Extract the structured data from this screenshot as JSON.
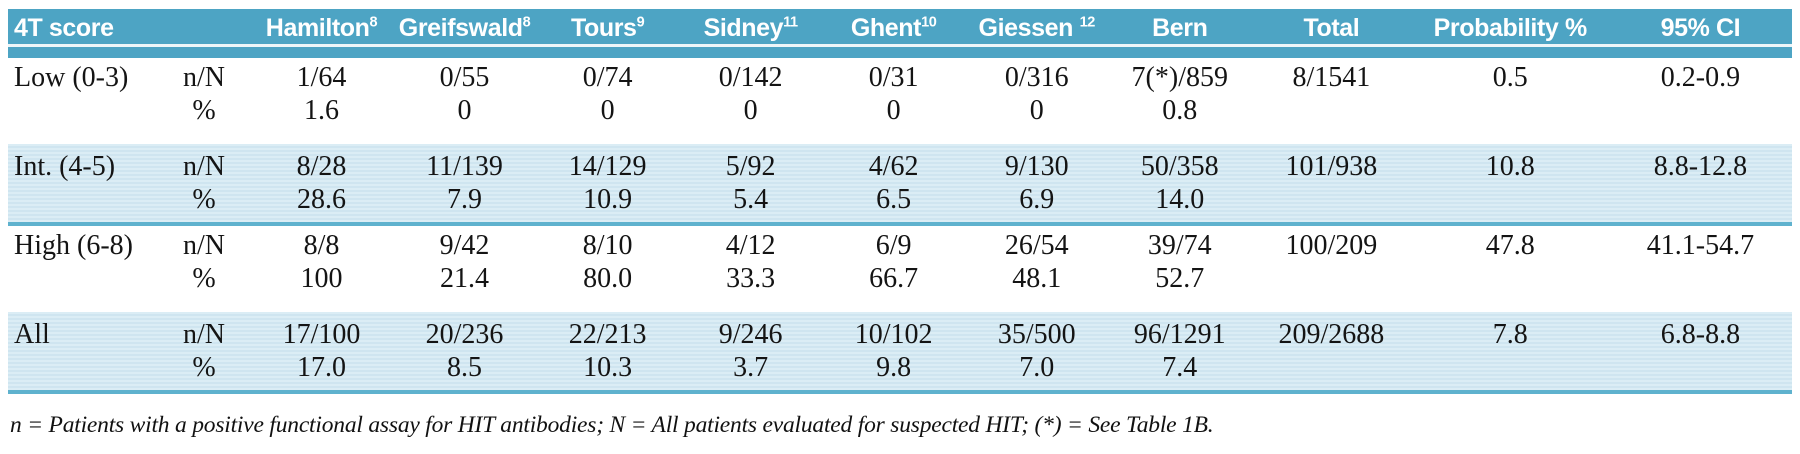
{
  "style": {
    "header_bg": "#4DA4C4",
    "band_bg": "#D6E9F2",
    "rule_color": "#5FB2CE",
    "header_text": "#FFFFFF",
    "body_text": "#141414"
  },
  "header": {
    "score_col": "4T score",
    "columns": [
      {
        "label": "Hamilton",
        "sup": "8"
      },
      {
        "label": "Greifswald",
        "sup": "8"
      },
      {
        "label": "Tours",
        "sup": "9"
      },
      {
        "label": "Sidney",
        "sup": "11"
      },
      {
        "label": "Ghent",
        "sup": "10"
      },
      {
        "label": "Giessen ",
        "sup": "12"
      },
      {
        "label": "Bern",
        "sup": ""
      },
      {
        "label": "Total",
        "sup": ""
      },
      {
        "label": "Probability %",
        "sup": ""
      },
      {
        "label": "95% CI",
        "sup": ""
      }
    ]
  },
  "rows": [
    {
      "score": "Low (0-3)",
      "sub_labels": [
        "n/N",
        "%"
      ],
      "n_N": [
        "1/64",
        "0/55",
        "0/74",
        "0/142",
        "0/31",
        "0/316",
        "7(*)/859",
        "8/1541"
      ],
      "pct": [
        "1.6",
        "0",
        "0",
        "0",
        "0",
        "0",
        "0.8"
      ],
      "probability": "0.5",
      "ci": "0.2-0.9",
      "shaded": false
    },
    {
      "score": "Int. (4-5)",
      "sub_labels": [
        "n/N",
        "%"
      ],
      "n_N": [
        "8/28",
        "11/139",
        "14/129",
        "5/92",
        "4/62",
        "9/130",
        "50/358",
        "101/938"
      ],
      "pct": [
        "28.6",
        "7.9",
        "10.9",
        "5.4",
        "6.5",
        "6.9",
        "14.0"
      ],
      "probability": "10.8",
      "ci": "8.8-12.8",
      "shaded": true
    },
    {
      "score": "High (6-8)",
      "sub_labels": [
        "n/N",
        "%"
      ],
      "n_N": [
        "8/8",
        "9/42",
        "8/10",
        "4/12",
        "6/9",
        "26/54",
        "39/74",
        "100/209"
      ],
      "pct": [
        "100",
        "21.4",
        "80.0",
        "33.3",
        "66.7",
        "48.1",
        "52.7"
      ],
      "probability": "47.8",
      "ci": "41.1-54.7",
      "shaded": false
    },
    {
      "score": "All",
      "sub_labels": [
        "n/N",
        "%"
      ],
      "n_N": [
        "17/100",
        "20/236",
        "22/213",
        "9/246",
        "10/102",
        "35/500",
        "96/1291",
        "209/2688"
      ],
      "pct": [
        "17.0",
        "8.5",
        "10.3",
        "3.7",
        "9.8",
        "7.0",
        "7.4"
      ],
      "probability": "7.8",
      "ci": "6.8-8.8",
      "shaded": true
    }
  ],
  "footnote": "n = Patients with a positive functional assay for HIT antibodies; N = All patients evaluated for suspected HIT; (*) = See Table 1B."
}
